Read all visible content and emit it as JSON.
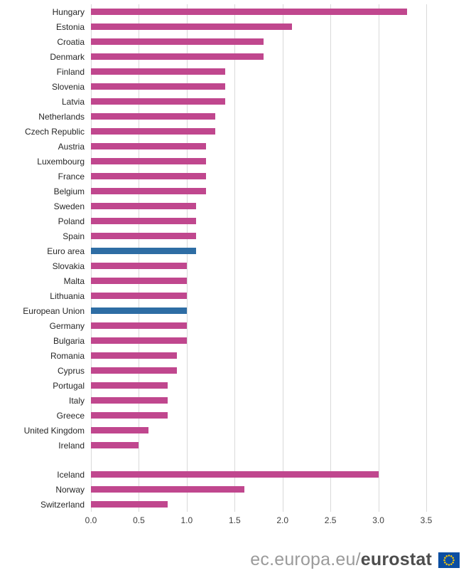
{
  "chart_data": {
    "type": "bar",
    "orientation": "horizontal",
    "title": "",
    "xlabel": "",
    "ylabel": "",
    "xlim": [
      0,
      3.5
    ],
    "xticks": [
      "0.0",
      "0.5",
      "1.0",
      "1.5",
      "2.0",
      "2.5",
      "3.0",
      "3.5"
    ],
    "legend": "none",
    "grid": "vertical",
    "colors": {
      "bar": "#c0478e",
      "highlight": "#2e6da4",
      "gridline": "#d9d9d9"
    },
    "groups": [
      {
        "items": [
          {
            "label": "Hungary",
            "value": 3.3
          },
          {
            "label": "Estonia",
            "value": 2.1
          },
          {
            "label": "Croatia",
            "value": 1.8
          },
          {
            "label": "Denmark",
            "value": 1.8
          },
          {
            "label": "Finland",
            "value": 1.4
          },
          {
            "label": "Slovenia",
            "value": 1.4
          },
          {
            "label": "Latvia",
            "value": 1.4
          },
          {
            "label": "Netherlands",
            "value": 1.3
          },
          {
            "label": "Czech Republic",
            "value": 1.3
          },
          {
            "label": "Austria",
            "value": 1.2
          },
          {
            "label": "Luxembourg",
            "value": 1.2
          },
          {
            "label": "France",
            "value": 1.2
          },
          {
            "label": "Belgium",
            "value": 1.2
          },
          {
            "label": "Sweden",
            "value": 1.1
          },
          {
            "label": "Poland",
            "value": 1.1
          },
          {
            "label": "Spain",
            "value": 1.1
          },
          {
            "label": "Euro area",
            "value": 1.1,
            "highlight": true
          },
          {
            "label": "Slovakia",
            "value": 1.0
          },
          {
            "label": "Malta",
            "value": 1.0
          },
          {
            "label": "Lithuania",
            "value": 1.0
          },
          {
            "label": "European Union",
            "value": 1.0,
            "highlight": true
          },
          {
            "label": "Germany",
            "value": 1.0
          },
          {
            "label": "Bulgaria",
            "value": 1.0
          },
          {
            "label": "Romania",
            "value": 0.9
          },
          {
            "label": "Cyprus",
            "value": 0.9
          },
          {
            "label": "Portugal",
            "value": 0.8
          },
          {
            "label": "Italy",
            "value": 0.8
          },
          {
            "label": "Greece",
            "value": 0.8
          },
          {
            "label": "United Kingdom",
            "value": 0.6
          },
          {
            "label": "Ireland",
            "value": 0.5
          }
        ]
      },
      {
        "items": [
          {
            "label": "Iceland",
            "value": 3.0
          },
          {
            "label": "Norway",
            "value": 1.6
          },
          {
            "label": "Switzerland",
            "value": 0.8
          }
        ]
      }
    ]
  },
  "footer": {
    "prefix": "ec.europa.eu/",
    "brand": "eurostat"
  }
}
